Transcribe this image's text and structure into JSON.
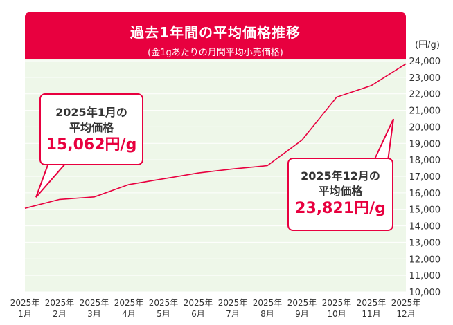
{
  "title": {
    "main": "過去1年間の平均価格推移",
    "sub": "(金1gあたりの月間平均小売価格)"
  },
  "colors": {
    "accent": "#e8003f",
    "plot_background": "#eef7e9",
    "axis_text": "#333333"
  },
  "chart_data": {
    "type": "line",
    "y_unit": "(円/g)",
    "categories": [
      [
        "2025年",
        "1月"
      ],
      [
        "2025年",
        "2月"
      ],
      [
        "2025年",
        "3月"
      ],
      [
        "2025年",
        "4月"
      ],
      [
        "2025年",
        "5月"
      ],
      [
        "2025年",
        "6月"
      ],
      [
        "2025年",
        "7月"
      ],
      [
        "2025年",
        "8月"
      ],
      [
        "2025年",
        "9月"
      ],
      [
        "2025年",
        "10月"
      ],
      [
        "2025年",
        "11月"
      ],
      [
        "2025年",
        "12月"
      ]
    ],
    "series": [
      {
        "values": [
          15062,
          15600,
          15750,
          16500,
          16850,
          17200,
          17450,
          17650,
          19200,
          21800,
          22500,
          23821
        ]
      }
    ],
    "ylim": [
      10000,
      24000
    ],
    "yticks": [
      10000,
      11000,
      12000,
      13000,
      14000,
      15000,
      16000,
      17000,
      18000,
      19000,
      20000,
      21000,
      22000,
      23000,
      24000
    ],
    "ytick_labels": [
      "10,000",
      "11,000",
      "12,000",
      "13,000",
      "14,000",
      "15,000",
      "16,000",
      "17,000",
      "18,000",
      "19,000",
      "20,000",
      "21,000",
      "22,000",
      "23,000",
      "24,000"
    ],
    "y_axis_position": "right",
    "grid": true
  },
  "callouts": {
    "jan": {
      "label_line1": "2025年1月の",
      "label_line2": "平均価格",
      "value": "15,062円/g"
    },
    "dec": {
      "label_line1": "2025年12月の",
      "label_line2": "平均価格",
      "value": "23,821円/g"
    }
  }
}
